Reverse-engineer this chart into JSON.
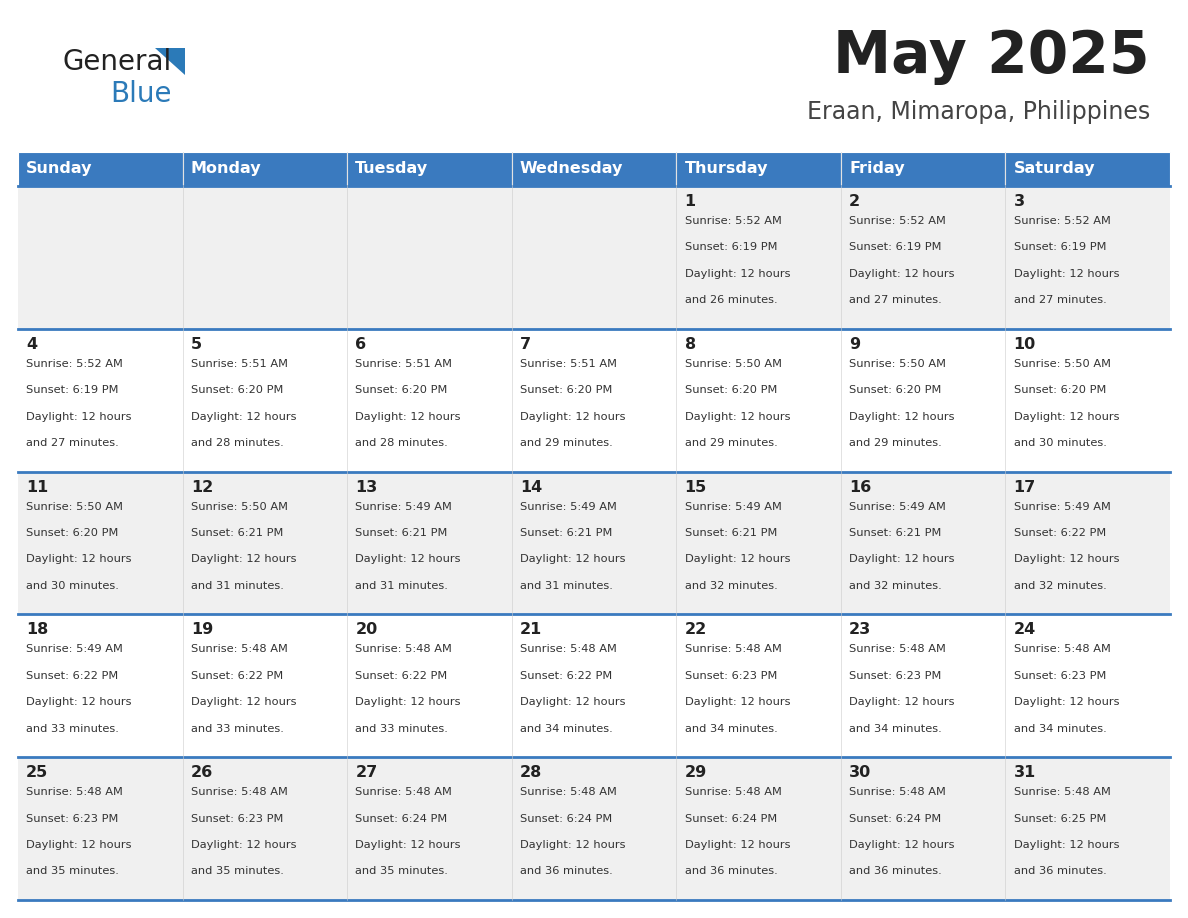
{
  "title": "May 2025",
  "subtitle": "Eraan, Mimaropa, Philippines",
  "days_of_week": [
    "Sunday",
    "Monday",
    "Tuesday",
    "Wednesday",
    "Thursday",
    "Friday",
    "Saturday"
  ],
  "header_bg": "#3a7abf",
  "header_text": "#ffffff",
  "row_bg_odd": "#f0f0f0",
  "row_bg_even": "#ffffff",
  "cell_text": "#333333",
  "day_num_color": "#222222",
  "divider_color": "#3a7abf",
  "title_color": "#222222",
  "subtitle_color": "#444444",
  "logo_general_color": "#222222",
  "logo_blue_color": "#2b7ab8",
  "calendar": [
    [
      null,
      null,
      null,
      null,
      {
        "day": 1,
        "sunrise": "5:52 AM",
        "sunset": "6:19 PM",
        "daylight_h": "12 hours",
        "daylight_m": "and 26 minutes."
      },
      {
        "day": 2,
        "sunrise": "5:52 AM",
        "sunset": "6:19 PM",
        "daylight_h": "12 hours",
        "daylight_m": "and 27 minutes."
      },
      {
        "day": 3,
        "sunrise": "5:52 AM",
        "sunset": "6:19 PM",
        "daylight_h": "12 hours",
        "daylight_m": "and 27 minutes."
      }
    ],
    [
      {
        "day": 4,
        "sunrise": "5:52 AM",
        "sunset": "6:19 PM",
        "daylight_h": "12 hours",
        "daylight_m": "and 27 minutes."
      },
      {
        "day": 5,
        "sunrise": "5:51 AM",
        "sunset": "6:20 PM",
        "daylight_h": "12 hours",
        "daylight_m": "and 28 minutes."
      },
      {
        "day": 6,
        "sunrise": "5:51 AM",
        "sunset": "6:20 PM",
        "daylight_h": "12 hours",
        "daylight_m": "and 28 minutes."
      },
      {
        "day": 7,
        "sunrise": "5:51 AM",
        "sunset": "6:20 PM",
        "daylight_h": "12 hours",
        "daylight_m": "and 29 minutes."
      },
      {
        "day": 8,
        "sunrise": "5:50 AM",
        "sunset": "6:20 PM",
        "daylight_h": "12 hours",
        "daylight_m": "and 29 minutes."
      },
      {
        "day": 9,
        "sunrise": "5:50 AM",
        "sunset": "6:20 PM",
        "daylight_h": "12 hours",
        "daylight_m": "and 29 minutes."
      },
      {
        "day": 10,
        "sunrise": "5:50 AM",
        "sunset": "6:20 PM",
        "daylight_h": "12 hours",
        "daylight_m": "and 30 minutes."
      }
    ],
    [
      {
        "day": 11,
        "sunrise": "5:50 AM",
        "sunset": "6:20 PM",
        "daylight_h": "12 hours",
        "daylight_m": "and 30 minutes."
      },
      {
        "day": 12,
        "sunrise": "5:50 AM",
        "sunset": "6:21 PM",
        "daylight_h": "12 hours",
        "daylight_m": "and 31 minutes."
      },
      {
        "day": 13,
        "sunrise": "5:49 AM",
        "sunset": "6:21 PM",
        "daylight_h": "12 hours",
        "daylight_m": "and 31 minutes."
      },
      {
        "day": 14,
        "sunrise": "5:49 AM",
        "sunset": "6:21 PM",
        "daylight_h": "12 hours",
        "daylight_m": "and 31 minutes."
      },
      {
        "day": 15,
        "sunrise": "5:49 AM",
        "sunset": "6:21 PM",
        "daylight_h": "12 hours",
        "daylight_m": "and 32 minutes."
      },
      {
        "day": 16,
        "sunrise": "5:49 AM",
        "sunset": "6:21 PM",
        "daylight_h": "12 hours",
        "daylight_m": "and 32 minutes."
      },
      {
        "day": 17,
        "sunrise": "5:49 AM",
        "sunset": "6:22 PM",
        "daylight_h": "12 hours",
        "daylight_m": "and 32 minutes."
      }
    ],
    [
      {
        "day": 18,
        "sunrise": "5:49 AM",
        "sunset": "6:22 PM",
        "daylight_h": "12 hours",
        "daylight_m": "and 33 minutes."
      },
      {
        "day": 19,
        "sunrise": "5:48 AM",
        "sunset": "6:22 PM",
        "daylight_h": "12 hours",
        "daylight_m": "and 33 minutes."
      },
      {
        "day": 20,
        "sunrise": "5:48 AM",
        "sunset": "6:22 PM",
        "daylight_h": "12 hours",
        "daylight_m": "and 33 minutes."
      },
      {
        "day": 21,
        "sunrise": "5:48 AM",
        "sunset": "6:22 PM",
        "daylight_h": "12 hours",
        "daylight_m": "and 34 minutes."
      },
      {
        "day": 22,
        "sunrise": "5:48 AM",
        "sunset": "6:23 PM",
        "daylight_h": "12 hours",
        "daylight_m": "and 34 minutes."
      },
      {
        "day": 23,
        "sunrise": "5:48 AM",
        "sunset": "6:23 PM",
        "daylight_h": "12 hours",
        "daylight_m": "and 34 minutes."
      },
      {
        "day": 24,
        "sunrise": "5:48 AM",
        "sunset": "6:23 PM",
        "daylight_h": "12 hours",
        "daylight_m": "and 34 minutes."
      }
    ],
    [
      {
        "day": 25,
        "sunrise": "5:48 AM",
        "sunset": "6:23 PM",
        "daylight_h": "12 hours",
        "daylight_m": "and 35 minutes."
      },
      {
        "day": 26,
        "sunrise": "5:48 AM",
        "sunset": "6:23 PM",
        "daylight_h": "12 hours",
        "daylight_m": "and 35 minutes."
      },
      {
        "day": 27,
        "sunrise": "5:48 AM",
        "sunset": "6:24 PM",
        "daylight_h": "12 hours",
        "daylight_m": "and 35 minutes."
      },
      {
        "day": 28,
        "sunrise": "5:48 AM",
        "sunset": "6:24 PM",
        "daylight_h": "12 hours",
        "daylight_m": "and 36 minutes."
      },
      {
        "day": 29,
        "sunrise": "5:48 AM",
        "sunset": "6:24 PM",
        "daylight_h": "12 hours",
        "daylight_m": "and 36 minutes."
      },
      {
        "day": 30,
        "sunrise": "5:48 AM",
        "sunset": "6:24 PM",
        "daylight_h": "12 hours",
        "daylight_m": "and 36 minutes."
      },
      {
        "day": 31,
        "sunrise": "5:48 AM",
        "sunset": "6:25 PM",
        "daylight_h": "12 hours",
        "daylight_m": "and 36 minutes."
      }
    ]
  ]
}
